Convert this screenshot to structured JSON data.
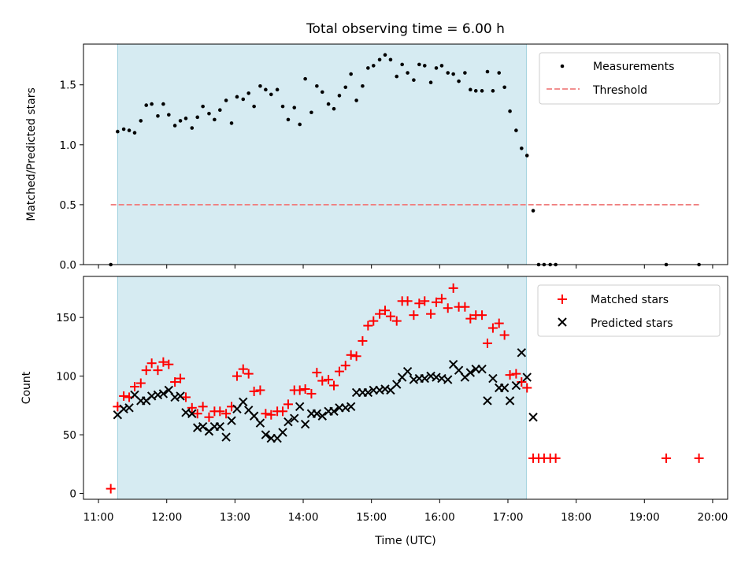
{
  "figure": {
    "title": "Total observing time = 6.00 h",
    "xlabel": "Time (UTC)",
    "xticks": [
      "11:00",
      "12:00",
      "13:00",
      "14:00",
      "15:00",
      "16:00",
      "17:00",
      "18:00",
      "19:00",
      "20:00"
    ],
    "shaded_span_color": "#add8e6"
  },
  "chart_data": [
    {
      "type": "scatter",
      "ylabel": "Matched/Predicted stars",
      "ylim": [
        0,
        1.84
      ],
      "xlim_hours": [
        10.78,
        20.22
      ],
      "yticks": [
        "0.0",
        "0.5",
        "1.0",
        "1.5"
      ],
      "shaded_span_hours": [
        11.28,
        17.27
      ],
      "legend": {
        "placement": "top-right",
        "entries": [
          "Measurements",
          "Threshold"
        ]
      },
      "series": [
        {
          "name": "Measurements",
          "marker": "dot",
          "color": "#000000",
          "x": [
            11.18,
            11.28,
            11.37,
            11.45,
            11.53,
            11.62,
            11.7,
            11.78,
            11.87,
            11.95,
            12.03,
            12.12,
            12.2,
            12.28,
            12.37,
            12.45,
            12.53,
            12.62,
            12.7,
            12.78,
            12.87,
            12.95,
            13.03,
            13.12,
            13.2,
            13.28,
            13.37,
            13.45,
            13.53,
            13.62,
            13.7,
            13.78,
            13.87,
            13.95,
            14.03,
            14.12,
            14.2,
            14.28,
            14.37,
            14.45,
            14.53,
            14.62,
            14.7,
            14.78,
            14.87,
            14.95,
            15.03,
            15.12,
            15.2,
            15.28,
            15.37,
            15.45,
            15.53,
            15.62,
            15.7,
            15.78,
            15.87,
            15.95,
            16.03,
            16.12,
            16.2,
            16.28,
            16.37,
            16.45,
            16.53,
            16.62,
            16.7,
            16.78,
            16.87,
            16.95,
            17.03,
            17.12,
            17.2,
            17.28,
            17.37,
            17.45,
            17.53,
            17.62,
            17.7,
            19.32,
            19.8
          ],
          "y": [
            0.0,
            1.11,
            1.13,
            1.12,
            1.1,
            1.2,
            1.33,
            1.34,
            1.24,
            1.34,
            1.25,
            1.16,
            1.2,
            1.22,
            1.14,
            1.23,
            1.32,
            1.26,
            1.21,
            1.29,
            1.37,
            1.18,
            1.4,
            1.38,
            1.43,
            1.32,
            1.49,
            1.46,
            1.42,
            1.46,
            1.32,
            1.21,
            1.31,
            1.17,
            1.55,
            1.27,
            1.49,
            1.44,
            1.34,
            1.3,
            1.41,
            1.48,
            1.59,
            1.37,
            1.49,
            1.64,
            1.66,
            1.71,
            1.75,
            1.71,
            1.57,
            1.67,
            1.6,
            1.54,
            1.67,
            1.66,
            1.52,
            1.64,
            1.66,
            1.6,
            1.59,
            1.53,
            1.6,
            1.46,
            1.45,
            1.45,
            1.61,
            1.45,
            1.6,
            1.48,
            1.28,
            1.12,
            0.97,
            0.91,
            0.45,
            0.0,
            0.0,
            0.0,
            0.0,
            0.0,
            0.0
          ]
        },
        {
          "name": "Threshold",
          "marker": "dashed-line",
          "color": "#f08080",
          "x": [
            11.18,
            19.8
          ],
          "y": [
            0.5,
            0.5
          ]
        }
      ]
    },
    {
      "type": "scatter",
      "ylabel": "Count",
      "ylim": [
        -5,
        185
      ],
      "xlim_hours": [
        10.78,
        20.22
      ],
      "yticks": [
        "0",
        "50",
        "100",
        "150"
      ],
      "shaded_span_hours": [
        11.28,
        17.27
      ],
      "legend": {
        "placement": "top-right",
        "entries": [
          "Matched stars",
          "Predicted stars"
        ]
      },
      "series": [
        {
          "name": "Matched stars",
          "marker": "plus",
          "color": "#ff0000",
          "x": [
            11.18,
            11.28,
            11.37,
            11.45,
            11.53,
            11.62,
            11.7,
            11.78,
            11.87,
            11.95,
            12.03,
            12.12,
            12.2,
            12.28,
            12.37,
            12.45,
            12.53,
            12.62,
            12.7,
            12.78,
            12.87,
            12.95,
            13.03,
            13.12,
            13.2,
            13.28,
            13.37,
            13.45,
            13.53,
            13.62,
            13.7,
            13.78,
            13.87,
            13.95,
            14.03,
            14.12,
            14.2,
            14.28,
            14.37,
            14.45,
            14.53,
            14.62,
            14.7,
            14.78,
            14.87,
            14.95,
            15.03,
            15.12,
            15.2,
            15.28,
            15.37,
            15.45,
            15.53,
            15.62,
            15.7,
            15.78,
            15.87,
            15.95,
            16.03,
            16.12,
            16.2,
            16.28,
            16.37,
            16.45,
            16.53,
            16.62,
            16.7,
            16.78,
            16.87,
            16.95,
            17.03,
            17.12,
            17.2,
            17.28,
            17.37,
            17.45,
            17.53,
            17.62,
            17.7,
            19.32,
            19.8
          ],
          "y": [
            4,
            74,
            83,
            82,
            91,
            94,
            105,
            111,
            105,
            112,
            110,
            95,
            98,
            82,
            73,
            68,
            74,
            65,
            70,
            70,
            68,
            74,
            100,
            106,
            102,
            87,
            88,
            68,
            67,
            70,
            70,
            76,
            88,
            88,
            89,
            85,
            103,
            96,
            97,
            92,
            104,
            109,
            118,
            117,
            130,
            143,
            147,
            153,
            156,
            151,
            147,
            164,
            164,
            152,
            162,
            164,
            153,
            163,
            166,
            158,
            175,
            159,
            159,
            149,
            152,
            152,
            128,
            141,
            145,
            135,
            101,
            102,
            95,
            90,
            30,
            30,
            30,
            30,
            30,
            30,
            30
          ]
        },
        {
          "name": "Predicted stars",
          "marker": "x",
          "color": "#000000",
          "x": [
            11.28,
            11.37,
            11.45,
            11.53,
            11.62,
            11.7,
            11.78,
            11.87,
            11.95,
            12.03,
            12.12,
            12.2,
            12.28,
            12.37,
            12.45,
            12.53,
            12.62,
            12.7,
            12.78,
            12.87,
            12.95,
            13.03,
            13.12,
            13.2,
            13.28,
            13.37,
            13.45,
            13.53,
            13.62,
            13.7,
            13.78,
            13.87,
            13.95,
            14.03,
            14.12,
            14.2,
            14.28,
            14.37,
            14.45,
            14.53,
            14.62,
            14.7,
            14.78,
            14.87,
            14.95,
            15.03,
            15.12,
            15.2,
            15.28,
            15.37,
            15.45,
            15.53,
            15.62,
            15.7,
            15.78,
            15.87,
            15.95,
            16.03,
            16.12,
            16.2,
            16.28,
            16.37,
            16.45,
            16.53,
            16.62,
            16.7,
            16.78,
            16.87,
            16.95,
            17.03,
            17.12,
            17.2,
            17.28,
            17.37
          ],
          "y": [
            67,
            72,
            73,
            84,
            79,
            79,
            83,
            84,
            85,
            88,
            82,
            83,
            69,
            68,
            56,
            57,
            53,
            57,
            57,
            48,
            62,
            72,
            78,
            71,
            66,
            60,
            50,
            47,
            47,
            52,
            61,
            64,
            74,
            59,
            68,
            68,
            66,
            70,
            70,
            73,
            73,
            74,
            86,
            86,
            86,
            88,
            88,
            89,
            88,
            93,
            99,
            104,
            97,
            98,
            98,
            100,
            99,
            98,
            97,
            110,
            105,
            99,
            103,
            106,
            106,
            79,
            98,
            90,
            90,
            79,
            92,
            120,
            99,
            65
          ]
        }
      ]
    }
  ]
}
